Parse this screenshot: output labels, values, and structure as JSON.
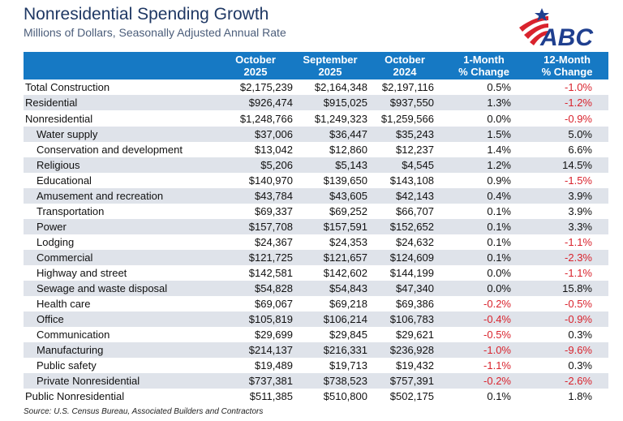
{
  "header": {
    "title": "Nonresidential Spending Growth",
    "subtitle": "Millions of Dollars, Seasonally Adjusted Annual Rate",
    "logo_text": "ABC",
    "logo_colors": {
      "blue": "#1f3f8f",
      "red": "#d9232d"
    }
  },
  "table": {
    "columns": [
      {
        "line1": "",
        "line2": ""
      },
      {
        "line1": "October",
        "line2": "2025"
      },
      {
        "line1": "September",
        "line2": "2025"
      },
      {
        "line1": "October",
        "line2": "2024"
      },
      {
        "line1": "1-Month",
        "line2": "% Change"
      },
      {
        "line1": "12-Month",
        "line2": "% Change"
      }
    ],
    "rows": [
      {
        "label": "Total Construction",
        "oct2025": "$2,175,239",
        "sep2025": "$2,164,348",
        "oct2024": "$2,197,116",
        "m1": "0.5%",
        "m12": "-1.0%"
      },
      {
        "label": "Residential",
        "oct2025": "$926,474",
        "sep2025": "$915,025",
        "oct2024": "$937,550",
        "m1": "1.3%",
        "m12": "-1.2%"
      },
      {
        "label": "Nonresidential",
        "oct2025": "$1,248,766",
        "sep2025": "$1,249,323",
        "oct2024": "$1,259,566",
        "m1": "0.0%",
        "m12": "-0.9%"
      },
      {
        "label": "Water supply",
        "oct2025": "$37,006",
        "sep2025": "$36,447",
        "oct2024": "$35,243",
        "m1": "1.5%",
        "m12": "5.0%"
      },
      {
        "label": "Conservation and development",
        "oct2025": "$13,042",
        "sep2025": "$12,860",
        "oct2024": "$12,237",
        "m1": "1.4%",
        "m12": "6.6%"
      },
      {
        "label": "Religious",
        "oct2025": "$5,206",
        "sep2025": "$5,143",
        "oct2024": "$4,545",
        "m1": "1.2%",
        "m12": "14.5%"
      },
      {
        "label": "Educational",
        "oct2025": "$140,970",
        "sep2025": "$139,650",
        "oct2024": "$143,108",
        "m1": "0.9%",
        "m12": "-1.5%"
      },
      {
        "label": "Amusement and recreation",
        "oct2025": "$43,784",
        "sep2025": "$43,605",
        "oct2024": "$42,143",
        "m1": "0.4%",
        "m12": "3.9%"
      },
      {
        "label": "Transportation",
        "oct2025": "$69,337",
        "sep2025": "$69,252",
        "oct2024": "$66,707",
        "m1": "0.1%",
        "m12": "3.9%"
      },
      {
        "label": "Power",
        "oct2025": "$157,708",
        "sep2025": "$157,591",
        "oct2024": "$152,652",
        "m1": "0.1%",
        "m12": "3.3%"
      },
      {
        "label": "Lodging",
        "oct2025": "$24,367",
        "sep2025": "$24,353",
        "oct2024": "$24,632",
        "m1": "0.1%",
        "m12": "-1.1%"
      },
      {
        "label": "Commercial",
        "oct2025": "$121,725",
        "sep2025": "$121,657",
        "oct2024": "$124,609",
        "m1": "0.1%",
        "m12": "-2.3%"
      },
      {
        "label": "Highway and street",
        "oct2025": "$142,581",
        "sep2025": "$142,602",
        "oct2024": "$144,199",
        "m1": "0.0%",
        "m12": "-1.1%"
      },
      {
        "label": "Sewage and waste disposal",
        "oct2025": "$54,828",
        "sep2025": "$54,843",
        "oct2024": "$47,340",
        "m1": "0.0%",
        "m12": "15.8%"
      },
      {
        "label": "Health care",
        "oct2025": "$69,067",
        "sep2025": "$69,218",
        "oct2024": "$69,386",
        "m1": "-0.2%",
        "m12": "-0.5%"
      },
      {
        "label": "Office",
        "oct2025": "$105,819",
        "sep2025": "$106,214",
        "oct2024": "$106,783",
        "m1": "-0.4%",
        "m12": "-0.9%"
      },
      {
        "label": "Communication",
        "oct2025": "$29,699",
        "sep2025": "$29,845",
        "oct2024": "$29,621",
        "m1": "-0.5%",
        "m12": "0.3%"
      },
      {
        "label": "Manufacturing",
        "oct2025": "$214,137",
        "sep2025": "$216,331",
        "oct2024": "$236,928",
        "m1": "-1.0%",
        "m12": "-9.6%"
      },
      {
        "label": "Public safety",
        "oct2025": "$19,489",
        "sep2025": "$19,713",
        "oct2024": "$19,432",
        "m1": "-1.1%",
        "m12": "0.3%"
      },
      {
        "label": "Private Nonresidential",
        "oct2025": "$737,381",
        "sep2025": "$738,523",
        "oct2024": "$757,391",
        "m1": "-0.2%",
        "m12": "-2.6%"
      },
      {
        "label": "Public Nonresidential",
        "oct2025": "$511,385",
        "sep2025": "$510,800",
        "oct2024": "$502,175",
        "m1": "0.1%",
        "m12": "1.8%"
      }
    ]
  },
  "source": "Source: U.S. Census Bureau, Associated Builders and Contractors"
}
